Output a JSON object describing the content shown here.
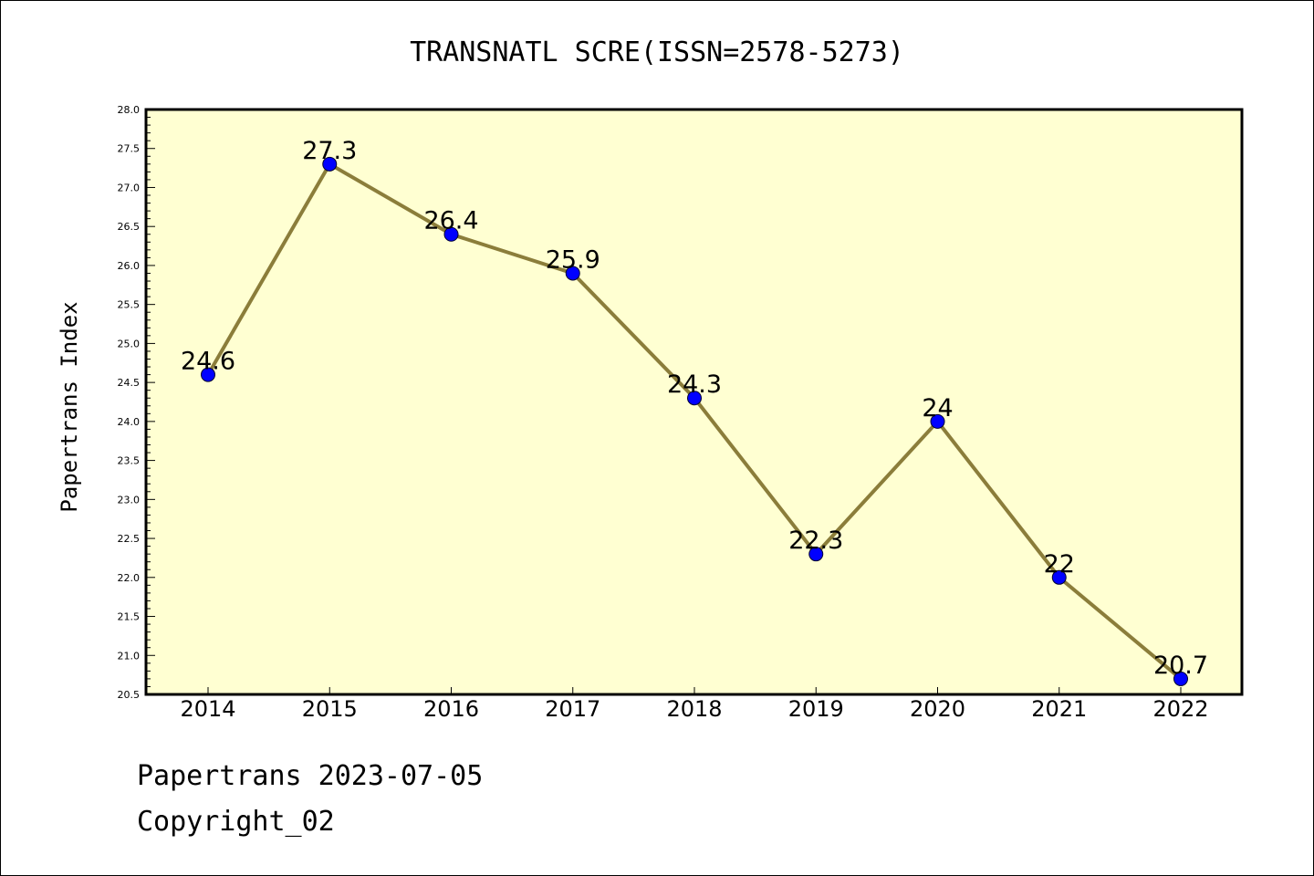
{
  "chart_data": {
    "type": "line",
    "title": "TRANSNATL SCRE(ISSN=2578-5273)",
    "xlabel": "",
    "ylabel": "Papertrans Index",
    "categories": [
      "2014",
      "2015",
      "2016",
      "2017",
      "2018",
      "2019",
      "2020",
      "2021",
      "2022"
    ],
    "values": [
      24.6,
      27.3,
      26.4,
      25.9,
      24.3,
      22.3,
      24.0,
      22.0,
      20.7
    ],
    "data_labels": [
      "24.6",
      "27.3",
      "26.4",
      "25.9",
      "24.3",
      "22.3",
      "24",
      "22",
      "20.7"
    ],
    "ylim": [
      20.5,
      28.0
    ],
    "yticks": [
      "20.5",
      "21.0",
      "21.5",
      "22.0",
      "22.5",
      "23.0",
      "23.5",
      "24.0",
      "24.5",
      "25.0",
      "25.5",
      "26.0",
      "26.5",
      "27.0",
      "27.5",
      "28.0"
    ],
    "grid": false,
    "legend": "none",
    "colors": {
      "line": "#8b7d3a",
      "marker": "#0000ff",
      "plot_background": "#ffffd2"
    }
  },
  "footer": {
    "line1": "Papertrans 2023-07-05",
    "line2": "Copyright_02"
  }
}
